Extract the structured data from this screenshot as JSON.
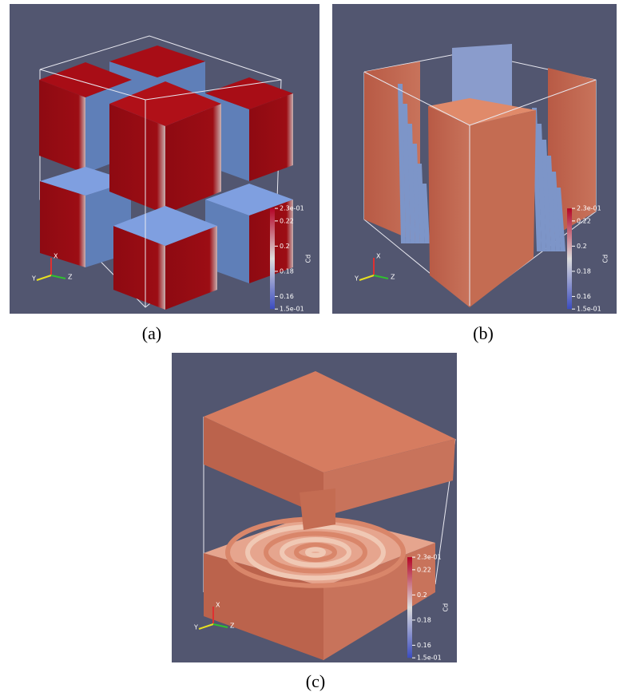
{
  "panels": [
    {
      "label": "(a)",
      "colorbar": {
        "title": "Cd",
        "ticks": [
          "2.3e-01",
          "0.22",
          "0.2",
          "0.18",
          "0.16",
          "1.5e-01"
        ]
      },
      "axes": [
        "X",
        "Y",
        "Z"
      ]
    },
    {
      "label": "(b)",
      "colorbar": {
        "title": "Cd",
        "ticks": [
          "2.3e-01",
          "0.22",
          "0.2",
          "0.18",
          "0.16",
          "1.5e-01"
        ]
      },
      "axes": [
        "X",
        "Y",
        "Z"
      ]
    },
    {
      "label": "(c)",
      "colorbar": {
        "title": "Cd",
        "ticks": [
          "2.3e-01",
          "0.22",
          "0.2",
          "0.18",
          "0.16",
          "1.5e-01"
        ]
      },
      "axes": [
        "X",
        "Y",
        "Z"
      ]
    }
  ]
}
